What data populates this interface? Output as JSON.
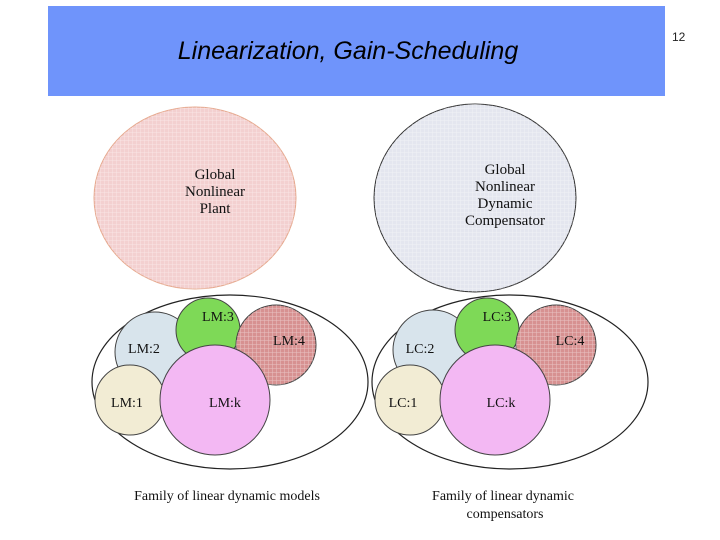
{
  "slide": {
    "title": "Linearization, Gain-Scheduling",
    "page_number": "12"
  },
  "colors": {
    "title_bar": "#6f94fb",
    "plant_fill": "#f3d0d0",
    "compensator_fill": "#e4e6ef",
    "local_1_fill": "#f2ecd4",
    "local_2_fill": "#d8e4ec",
    "local_3_fill": "#7ed957",
    "local_4_fill": "#d79191",
    "local_k_fill": "#f3b8f3"
  },
  "diagram": {
    "plant": {
      "lines": [
        "Global",
        "Nonlinear",
        "Plant"
      ]
    },
    "compensator": {
      "lines": [
        "Global",
        "Nonlinear",
        "Dynamic",
        "Compensator"
      ]
    },
    "models": {
      "lm3": "LM:3",
      "lm2": "LM:2",
      "lm4": "LM:4",
      "lm1": "LM:1",
      "lmk": "LM:k",
      "caption": "Family of linear dynamic models"
    },
    "compensators": {
      "lc3": "LC:3",
      "lc2": "LC:2",
      "lc4": "LC:4",
      "lc1": "LC:1",
      "lck": "LC:k",
      "caption_lines": [
        "Family of linear dynamic",
        "compensators"
      ]
    }
  }
}
